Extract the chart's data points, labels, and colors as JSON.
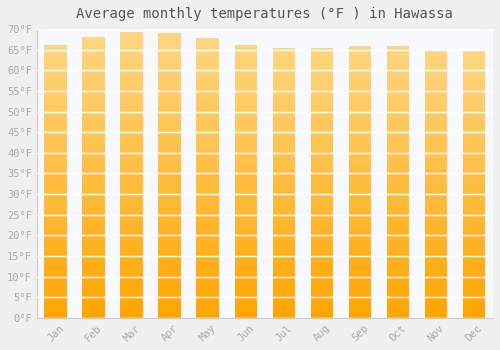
{
  "title": "Average monthly temperatures (°F ) in Hawassa",
  "months": [
    "Jan",
    "Feb",
    "Mar",
    "Apr",
    "May",
    "Jun",
    "Jul",
    "Aug",
    "Sep",
    "Oct",
    "Nov",
    "Dec"
  ],
  "values": [
    66.2,
    68.0,
    69.3,
    69.1,
    67.8,
    66.2,
    65.5,
    65.5,
    65.8,
    65.8,
    64.9,
    64.6
  ],
  "bar_color_bottom": "#FFA500",
  "bar_color_top": "#FFD580",
  "background_color": "#f0f0f0",
  "plot_bg_color": "#f8f8ff",
  "ylim": [
    0,
    70
  ],
  "yticks": [
    0,
    5,
    10,
    15,
    20,
    25,
    30,
    35,
    40,
    45,
    50,
    55,
    60,
    65,
    70
  ],
  "ytick_labels": [
    "0°F",
    "5°F",
    "10°F",
    "15°F",
    "20°F",
    "25°F",
    "30°F",
    "35°F",
    "40°F",
    "45°F",
    "50°F",
    "55°F",
    "60°F",
    "65°F",
    "70°F"
  ],
  "title_fontsize": 10,
  "tick_fontsize": 7.5,
  "bar_width": 0.6,
  "grid_color": "#ffffff",
  "spine_color": "#cccccc",
  "text_color": "#aaaaaa"
}
